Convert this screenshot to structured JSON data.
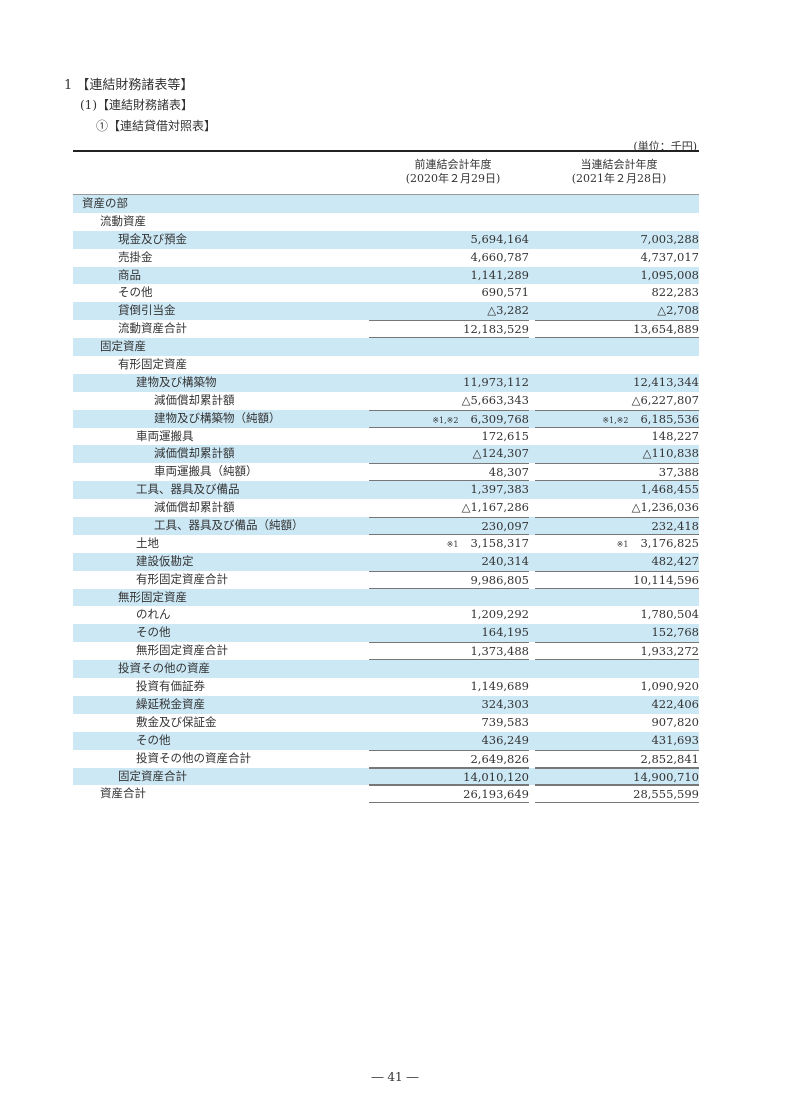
{
  "headings": {
    "h1": "1 【連結財務諸表等】",
    "h2": "(1)【連結財務諸表】",
    "h3": "①【連結貸借対照表】"
  },
  "unit": "(単位：千円)",
  "columns": [
    {
      "title": "前連結会計年度",
      "date": "(2020年２月29日)"
    },
    {
      "title": "当連結会計年度",
      "date": "(2021年２月28日)"
    }
  ],
  "rows": [
    {
      "label": "資産の部",
      "level": 0,
      "prev": "",
      "curr": ""
    },
    {
      "label": "流動資産",
      "level": 1,
      "prev": "",
      "curr": ""
    },
    {
      "label": "現金及び預金",
      "level": 2,
      "prev": "5,694,164",
      "curr": "7,003,288"
    },
    {
      "label": "売掛金",
      "level": 2,
      "prev": "4,660,787",
      "curr": "4,737,017"
    },
    {
      "label": "商品",
      "level": 2,
      "prev": "1,141,289",
      "curr": "1,095,008"
    },
    {
      "label": "その他",
      "level": 2,
      "prev": "690,571",
      "curr": "822,283"
    },
    {
      "label": "貸倒引当金",
      "level": 2,
      "prev": "△3,282",
      "curr": "△2,708"
    },
    {
      "label": "流動資産合計",
      "level": 2,
      "prev": "12,183,529",
      "curr": "13,654,889",
      "total": true
    },
    {
      "label": "固定資産",
      "level": 1,
      "prev": "",
      "curr": ""
    },
    {
      "label": "有形固定資産",
      "level": 2,
      "prev": "",
      "curr": ""
    },
    {
      "label": "建物及び構築物",
      "level": 3,
      "prev": "11,973,112",
      "curr": "12,413,344"
    },
    {
      "label": "減価償却累計額",
      "level": 4,
      "prev": "△5,663,343",
      "curr": "△6,227,807"
    },
    {
      "label": "建物及び構築物（純額）",
      "level": 4,
      "prev": "6,309,768",
      "curr": "6,185,536",
      "prev_note": "※1,※2",
      "curr_note": "※1,※2",
      "total": true
    },
    {
      "label": "車両運搬具",
      "level": 3,
      "prev": "172,615",
      "curr": "148,227"
    },
    {
      "label": "減価償却累計額",
      "level": 4,
      "prev": "△124,307",
      "curr": "△110,838"
    },
    {
      "label": "車両運搬具（純額）",
      "level": 4,
      "prev": "48,307",
      "curr": "37,388",
      "total": true
    },
    {
      "label": "工具、器具及び備品",
      "level": 3,
      "prev": "1,397,383",
      "curr": "1,468,455"
    },
    {
      "label": "減価償却累計額",
      "level": 4,
      "prev": "△1,167,286",
      "curr": "△1,236,036"
    },
    {
      "label": "工具、器具及び備品（純額）",
      "level": 4,
      "prev": "230,097",
      "curr": "232,418",
      "total": true
    },
    {
      "label": "土地",
      "level": 3,
      "prev": "3,158,317",
      "curr": "3,176,825",
      "prev_note": "※1",
      "curr_note": "※1"
    },
    {
      "label": "建設仮勘定",
      "level": 3,
      "prev": "240,314",
      "curr": "482,427"
    },
    {
      "label": "有形固定資産合計",
      "level": 3,
      "prev": "9,986,805",
      "curr": "10,114,596",
      "total": true
    },
    {
      "label": "無形固定資産",
      "level": 2,
      "prev": "",
      "curr": ""
    },
    {
      "label": "のれん",
      "level": 3,
      "prev": "1,209,292",
      "curr": "1,780,504"
    },
    {
      "label": "その他",
      "level": 3,
      "prev": "164,195",
      "curr": "152,768"
    },
    {
      "label": "無形固定資産合計",
      "level": 3,
      "prev": "1,373,488",
      "curr": "1,933,272",
      "total": true
    },
    {
      "label": "投資その他の資産",
      "level": 2,
      "prev": "",
      "curr": ""
    },
    {
      "label": "投資有価証券",
      "level": 3,
      "prev": "1,149,689",
      "curr": "1,090,920"
    },
    {
      "label": "繰延税金資産",
      "level": 3,
      "prev": "324,303",
      "curr": "422,406"
    },
    {
      "label": "敷金及び保証金",
      "level": 3,
      "prev": "739,583",
      "curr": "907,820"
    },
    {
      "label": "その他",
      "level": 3,
      "prev": "436,249",
      "curr": "431,693"
    },
    {
      "label": "投資その他の資産合計",
      "level": 3,
      "prev": "2,649,826",
      "curr": "2,852,841",
      "total": true
    },
    {
      "label": "固定資産合計",
      "level": 2,
      "prev": "14,010,120",
      "curr": "14,900,710",
      "total": true
    },
    {
      "label": "資産合計",
      "level": 1,
      "prev": "26,193,649",
      "curr": "28,555,599",
      "total": true
    }
  ],
  "footer": "― 41 ―",
  "colors": {
    "stripe": "#cce8f5"
  }
}
